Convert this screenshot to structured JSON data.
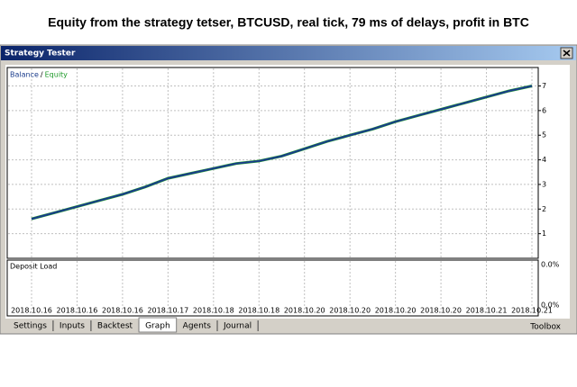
{
  "chart_data": {
    "type": "line",
    "title": "Equity from the strategy tetser, BTCUSD, real tick, 79 ms of delays, profit in BTC",
    "categories": [
      "2018.10.16",
      null,
      "2018.10.16",
      null,
      "2018.10.16",
      null,
      "2018.10.17",
      null,
      "2018.10.18",
      null,
      "2018.10.18",
      null,
      "2018.10.20",
      null,
      "2018.10.20",
      null,
      "2018.10.20",
      null,
      "2018.10.20",
      null,
      "2018.10.21",
      null,
      "2018.10.21"
    ],
    "series": [
      {
        "name": "Balance",
        "color": "#1a3c8c",
        "values": [
          1.6,
          1.85,
          2.1,
          2.35,
          2.6,
          2.9,
          3.25,
          3.45,
          3.65,
          3.85,
          3.95,
          4.15,
          4.45,
          4.75,
          5.0,
          5.25,
          5.55,
          5.8,
          6.05,
          6.3,
          6.55,
          6.8,
          7.0
        ]
      },
      {
        "name": "Equity",
        "color": "#1f9a2a",
        "values": [
          1.6,
          1.85,
          2.1,
          2.35,
          2.6,
          2.9,
          3.25,
          3.45,
          3.65,
          3.85,
          3.95,
          4.15,
          4.45,
          4.75,
          5.0,
          5.25,
          5.55,
          5.8,
          6.05,
          6.3,
          6.55,
          6.8,
          7.0
        ]
      }
    ],
    "legend_separator": "/",
    "ylim": [
      0,
      7.75
    ],
    "yticks": [
      1,
      2,
      3,
      4,
      5,
      6,
      7
    ],
    "grid": true
  },
  "window": {
    "title": "Strategy Tester",
    "deposit_load": {
      "title": "Deposit Load",
      "labels": [
        "0.0%",
        "0.0%"
      ]
    },
    "tabs": [
      "Settings",
      "Inputs",
      "Backtest",
      "Graph",
      "Agents",
      "Journal"
    ],
    "selected_tab": 3,
    "toolbox": "Toolbox"
  }
}
